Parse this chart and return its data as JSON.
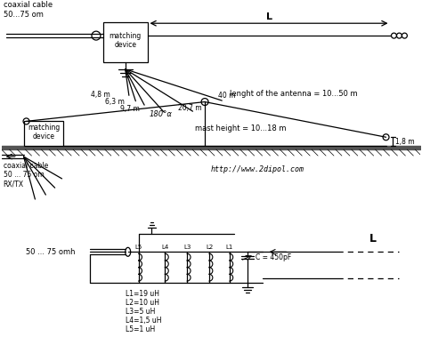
{
  "bg_color": "#ffffff",
  "line_color": "#000000",
  "d1": {
    "coax_label": "coaxial cable\n50...75 om",
    "L_label": "L",
    "matching_label": "matching\ndevice",
    "radial_labels": [
      "4,8 m",
      "6,3 m",
      "9,7 m",
      "20,7 m",
      "40 m"
    ]
  },
  "d2": {
    "antenna_label": "lenght of the antenna = 10...50 m",
    "mast_label": "mast height = 10...18 m",
    "angle_label": "180°α",
    "height_label": "1,8 m",
    "matching_label": "matching\ndevice",
    "coax_label": "coaxial cable\n50 ... 75 om\nRX/TX",
    "url": "http://www.2dipol.com"
  },
  "d3": {
    "input_label": "50 ... 75 omh",
    "L_label": "L",
    "C_label": "C = 450pF",
    "inductor_labels": [
      "L5",
      "L4",
      "L3",
      "L2",
      "L1"
    ],
    "values": [
      "L1=19 uH",
      "L2=10 uH",
      "L3=5 uH",
      "L4=1,5 uH",
      "L5=1 uH"
    ]
  }
}
